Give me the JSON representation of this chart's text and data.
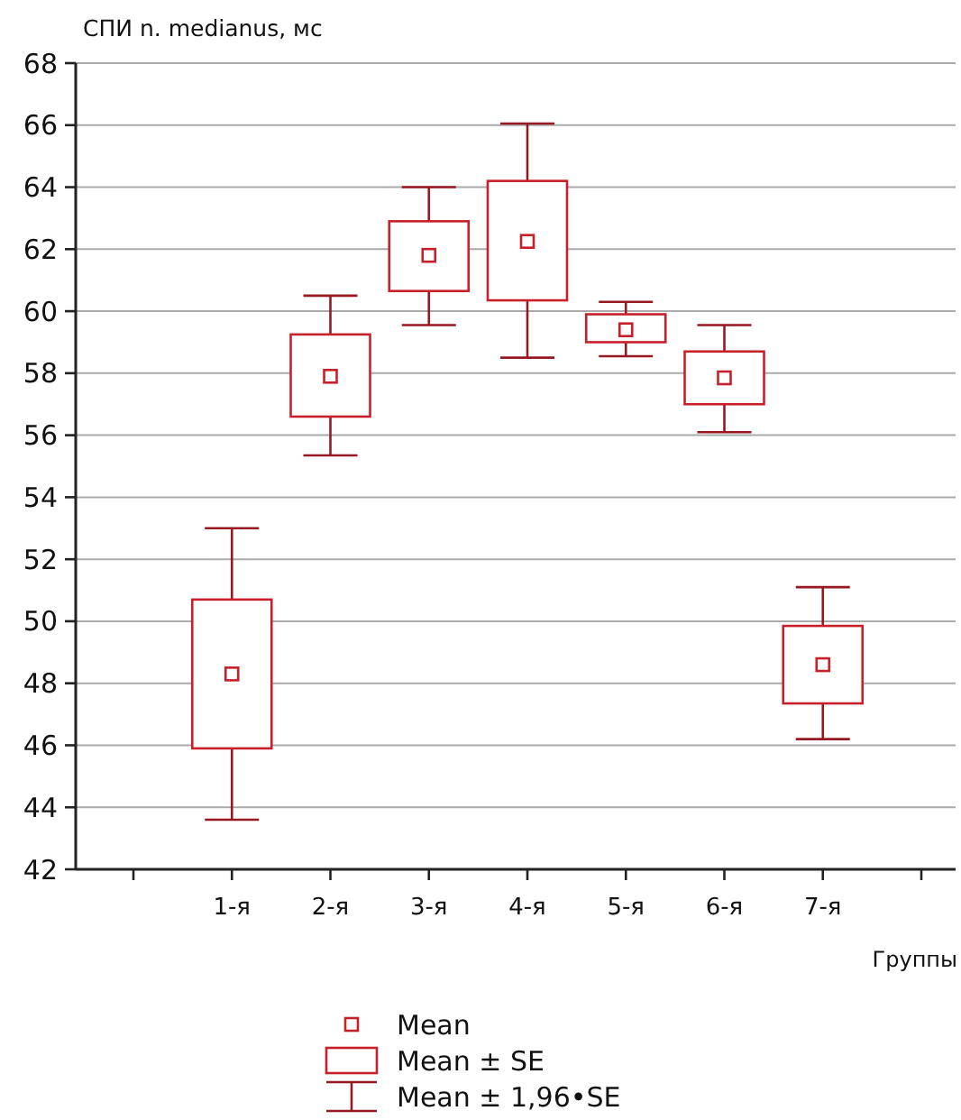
{
  "chart_data": {
    "type": "box",
    "ylabel": "СПИ n. medianus, мс",
    "xlabel": "Группы",
    "categories": [
      null,
      "1-я",
      "2-я",
      "3-я",
      "4-я",
      "5-я",
      "6-я",
      "7-я",
      null
    ],
    "series": [
      {
        "color": "#c8202a",
        "boxes": [
          null,
          {
            "low": 43.6,
            "q1": 45.9,
            "mean": 48.3,
            "q3": 50.7,
            "high": 53.0
          },
          {
            "low": 55.35,
            "q1": 56.6,
            "mean": 57.9,
            "q3": 59.25,
            "high": 60.5
          },
          {
            "low": 59.55,
            "q1": 60.65,
            "mean": 61.8,
            "q3": 62.9,
            "high": 64.0
          },
          {
            "low": 58.5,
            "q1": 60.35,
            "mean": 62.25,
            "q3": 64.2,
            "high": 66.05
          },
          {
            "low": 58.55,
            "q1": 59.0,
            "mean": 59.4,
            "q3": 59.9,
            "high": 60.3
          },
          {
            "low": 56.1,
            "q1": 57.0,
            "mean": 57.85,
            "q3": 58.7,
            "high": 59.55
          },
          {
            "low": 46.2,
            "q1": 47.35,
            "mean": 48.6,
            "q3": 49.85,
            "high": 51.1
          },
          null
        ]
      }
    ],
    "ylim": [
      42,
      68
    ],
    "yticks": [
      42,
      44,
      46,
      48,
      50,
      52,
      54,
      56,
      58,
      60,
      62,
      64,
      66,
      68
    ],
    "grid": "y",
    "annotations": [
      "Mean",
      "Mean ± SE",
      "Mean ± 1,96•SE"
    ]
  }
}
